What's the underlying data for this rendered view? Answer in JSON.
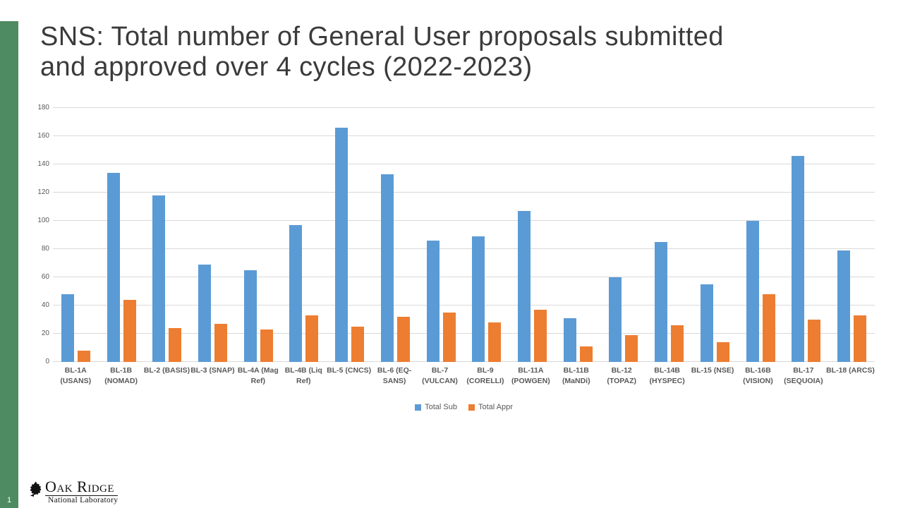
{
  "slide": {
    "title": "SNS: Total number of General User proposals submitted\nand approved over 4 cycles (2022-2023)",
    "page_number": "1",
    "accent_color": "#4e8a62"
  },
  "logo": {
    "line1": "Oak Ridge",
    "line2": "National Laboratory"
  },
  "chart_data": {
    "type": "bar",
    "title": "",
    "categories": [
      "BL-1A\n(USANS)",
      "BL-1B\n(NOMAD)",
      "BL-2 (BASIS)",
      "BL-3 (SNAP)",
      "BL-4A (Mag\nRef)",
      "BL-4B (Liq\nRef)",
      "BL-5 (CNCS)",
      "BL-6 (EQ-\nSANS)",
      "BL-7\n(VULCAN)",
      "BL-9\n(CORELLI)",
      "BL-11A\n(POWGEN)",
      "BL-11B\n(MaNDi)",
      "BL-12\n(TOPAZ)",
      "BL-14B\n(HYSPEC)",
      "BL-15 (NSE)",
      "BL-16B\n(VISION)",
      "BL-17\n(SEQUOIA)",
      "BL-18 (ARCS)"
    ],
    "series": [
      {
        "name": "Total Sub",
        "color": "#5b9bd5",
        "values": [
          48,
          134,
          118,
          69,
          65,
          97,
          166,
          133,
          86,
          89,
          107,
          31,
          60,
          85,
          55,
          100,
          146,
          79
        ]
      },
      {
        "name": "Total Appr",
        "color": "#ed7d31",
        "values": [
          8,
          44,
          24,
          27,
          23,
          33,
          25,
          32,
          35,
          28,
          37,
          11,
          19,
          26,
          14,
          48,
          30,
          33
        ]
      }
    ],
    "ylim": [
      0,
      180
    ],
    "ytick_step": 20,
    "grid": true,
    "gridline_color": "#d9d9d9",
    "legend_position": "bottom",
    "xlabel": "",
    "ylabel": ""
  }
}
